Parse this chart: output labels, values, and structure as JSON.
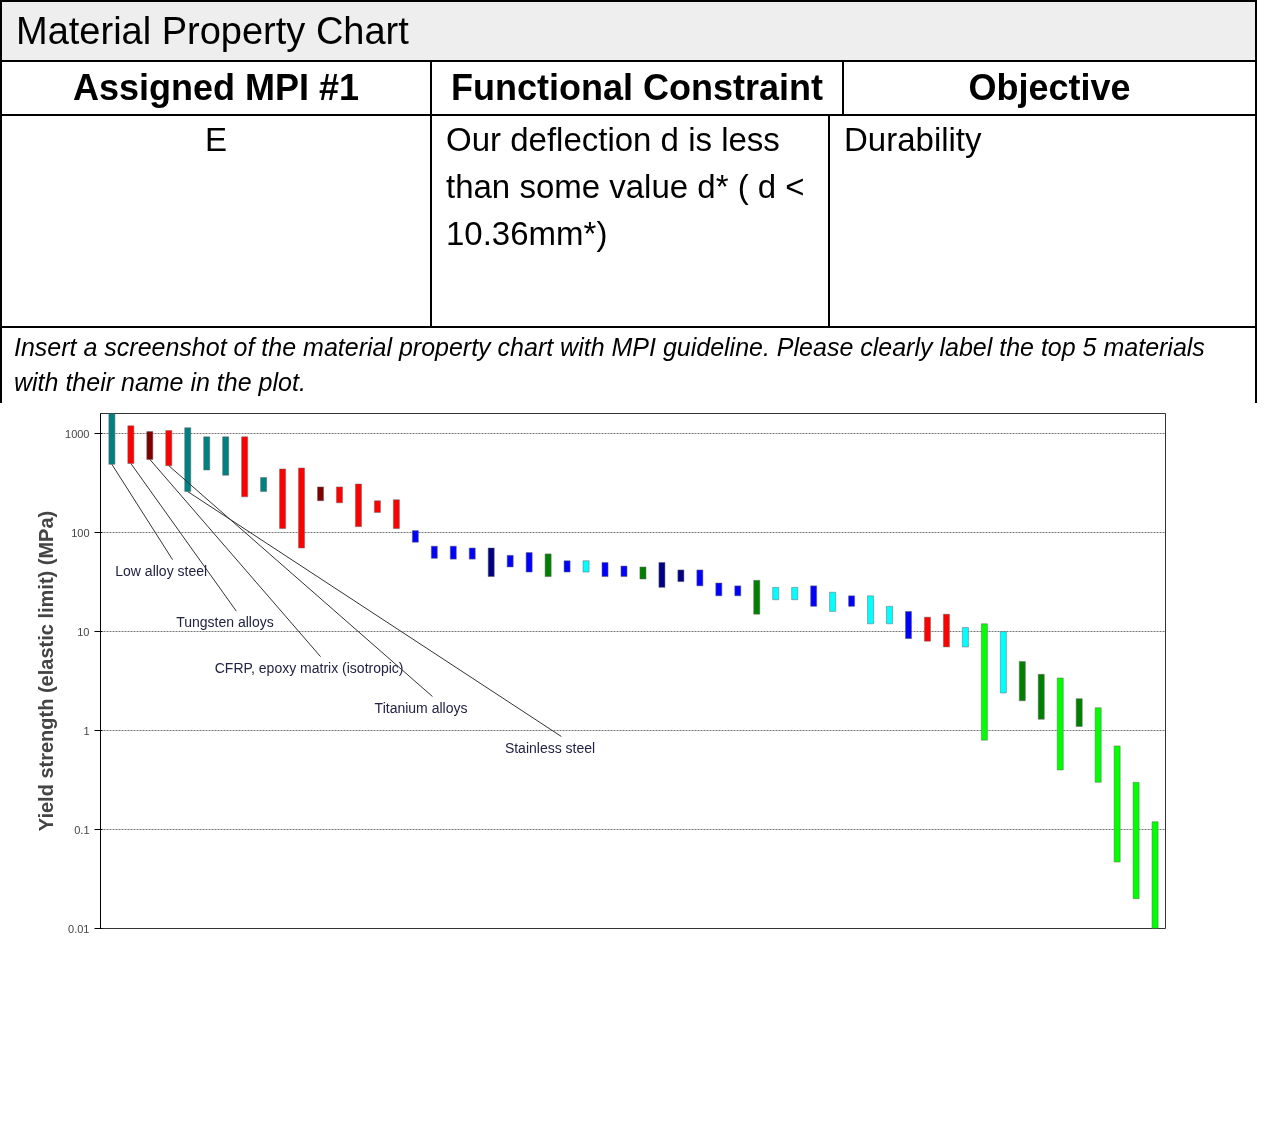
{
  "chart_data": {
    "type": "bar",
    "title": "Material Property Chart",
    "ylabel": "Yield strength (elastic limit) (MPa)",
    "annotations": [
      "Assigned MPI #1",
      "Functional Constraint",
      "Objective",
      "E",
      "Our deflection d is less than some value d* ( d < 10.36mm*)",
      "Durability",
      "Insert a screenshot of the material property chart with MPI guideline. Please clearly label the top 5 materials with their name in the plot.",
      "Low alloy steel",
      "Tungsten alloys",
      "CFRP, epoxy matrix (isotropic)",
      "Titanium alloys",
      "Stainless steel"
    ],
    "categories": [
      null,
      null,
      null,
      null,
      null,
      null,
      null,
      null,
      null,
      null,
      null,
      null,
      null,
      null,
      null,
      null,
      null,
      null,
      null,
      null,
      null,
      null,
      null,
      null,
      null,
      null,
      null,
      null,
      null,
      null,
      null,
      null,
      null,
      null,
      null,
      null,
      null,
      null,
      null,
      null,
      null,
      null,
      null,
      null,
      null,
      null,
      null,
      null,
      null,
      null,
      null,
      null,
      null,
      null,
      null,
      null
    ],
    "base": [
      490,
      500,
      550,
      475,
      260,
      430,
      380,
      230,
      260,
      110,
      70,
      210,
      200,
      115,
      160,
      110,
      80,
      55,
      54,
      54,
      36,
      45,
      40,
      36,
      40,
      40,
      36,
      36,
      34,
      28,
      32,
      29,
      23,
      23,
      15,
      21,
      21,
      18,
      16,
      18,
      12,
      12,
      8.5,
      8,
      7,
      7,
      0.8,
      2.4,
      2,
      1.3,
      0.4,
      1.1,
      0.3,
      0.047,
      0.02,
      0.01
    ],
    "values": [
      1110,
      700,
      500,
      600,
      890,
      500,
      550,
      700,
      100,
      330,
      380,
      80,
      90,
      195,
      50,
      105,
      25,
      18,
      19,
      16,
      34,
      14,
      23,
      25,
      12,
      12,
      14,
      10,
      11,
      22,
      10,
      13,
      8,
      6,
      18,
      7,
      7,
      11,
      9,
      5,
      11,
      6,
      7.5,
      6,
      8,
      4,
      11.2,
      7.6,
      3,
      2.4,
      3,
      1,
      1.4,
      0.653,
      0.28,
      0.11
    ],
    "colors": [
      "#008080",
      "#ff0000",
      "#800000",
      "#ff0000",
      "#008080",
      "#008080",
      "#008080",
      "#ff0000",
      "#008080",
      "#ff0000",
      "#ff0000",
      "#800000",
      "#ff0000",
      "#ff0000",
      "#ff0000",
      "#ff0000",
      "#0000ff",
      "#0000ff",
      "#0000ff",
      "#0000ff",
      "#000080",
      "#0000ff",
      "#0000ff",
      "#008000",
      "#0000ff",
      "#00ffff",
      "#0000ff",
      "#0000ff",
      "#008000",
      "#000080",
      "#000080",
      "#0000ff",
      "#0000ff",
      "#0000ff",
      "#008000",
      "#00ffff",
      "#00ffff",
      "#0000ff",
      "#00ffff",
      "#0000ff",
      "#00ffff",
      "#00ffff",
      "#0000ff",
      "#ff0000",
      "#ff0000",
      "#00ffff",
      "#00ff00",
      "#00ffff",
      "#008000",
      "#008000",
      "#00ff00",
      "#008000",
      "#00ff00",
      "#00ff00",
      "#00ff00",
      "#00ff00"
    ],
    "log": "y",
    "ylim": [
      0.01,
      1600
    ],
    "yticks": [
      0.01,
      0.1,
      1,
      10,
      100,
      1000
    ],
    "grid": "y",
    "tick_labels": "y"
  }
}
